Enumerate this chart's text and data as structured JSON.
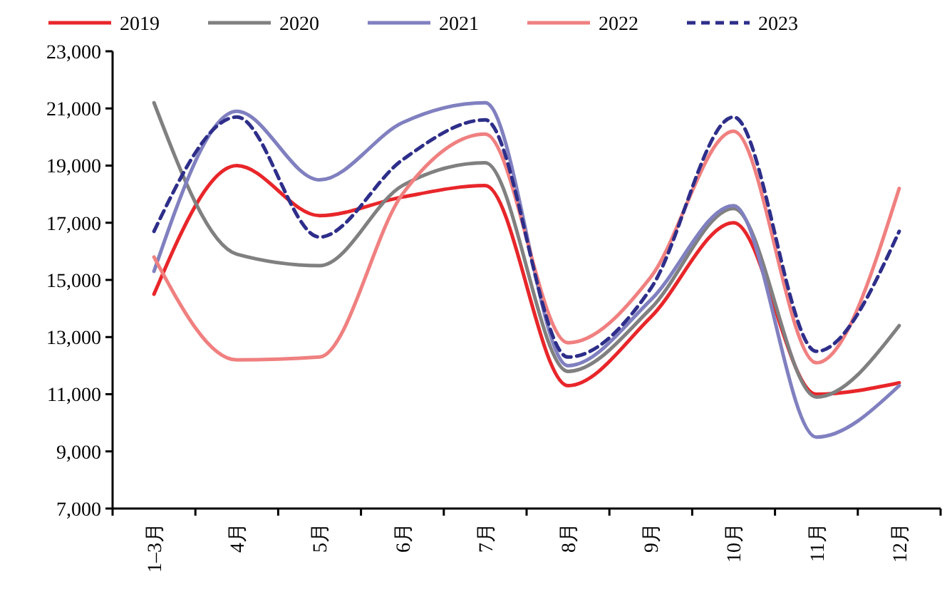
{
  "chart_data": {
    "type": "line",
    "categories": [
      "1–3月",
      "4月",
      "5月",
      "6月",
      "7月",
      "8月",
      "9月",
      "10月",
      "11月",
      "12月"
    ],
    "series": [
      {
        "name": "2019",
        "color": "#e8262a",
        "line_style": "solid",
        "values": [
          14500,
          19000,
          17250,
          17900,
          18300,
          11300,
          13700,
          17000,
          11000,
          11400
        ]
      },
      {
        "name": "2020",
        "color": "#808080",
        "line_style": "solid",
        "values": [
          21200,
          15900,
          15500,
          18300,
          19100,
          11800,
          14000,
          17500,
          10900,
          13400
        ]
      },
      {
        "name": "2021",
        "color": "#8080c0",
        "line_style": "solid",
        "values": [
          15300,
          20900,
          18500,
          20500,
          21200,
          12000,
          14300,
          17600,
          9500,
          11300
        ]
      },
      {
        "name": "2022",
        "color": "#f08080",
        "line_style": "solid",
        "values": [
          15800,
          12200,
          12300,
          18000,
          20100,
          12800,
          15100,
          20200,
          12100,
          18200
        ]
      },
      {
        "name": "2023",
        "color": "#2e2e8a",
        "line_style": "dashed",
        "values": [
          16700,
          20700,
          16500,
          19200,
          20600,
          12300,
          14700,
          20700,
          12500,
          16700
        ]
      }
    ],
    "ylim": [
      7000,
      23000
    ],
    "yticks": [
      {
        "value": 7000,
        "label": "7,000"
      },
      {
        "value": 9000,
        "label": "9,000"
      },
      {
        "value": 11000,
        "label": "11,000"
      },
      {
        "value": 13000,
        "label": "13,000"
      },
      {
        "value": 15000,
        "label": "15,000"
      },
      {
        "value": 17000,
        "label": "17,000"
      },
      {
        "value": 19000,
        "label": "19,000"
      },
      {
        "value": 21000,
        "label": "21,000"
      },
      {
        "value": 23000,
        "label": "23,000"
      }
    ],
    "grid": false,
    "legend": "top",
    "marker": "none"
  }
}
